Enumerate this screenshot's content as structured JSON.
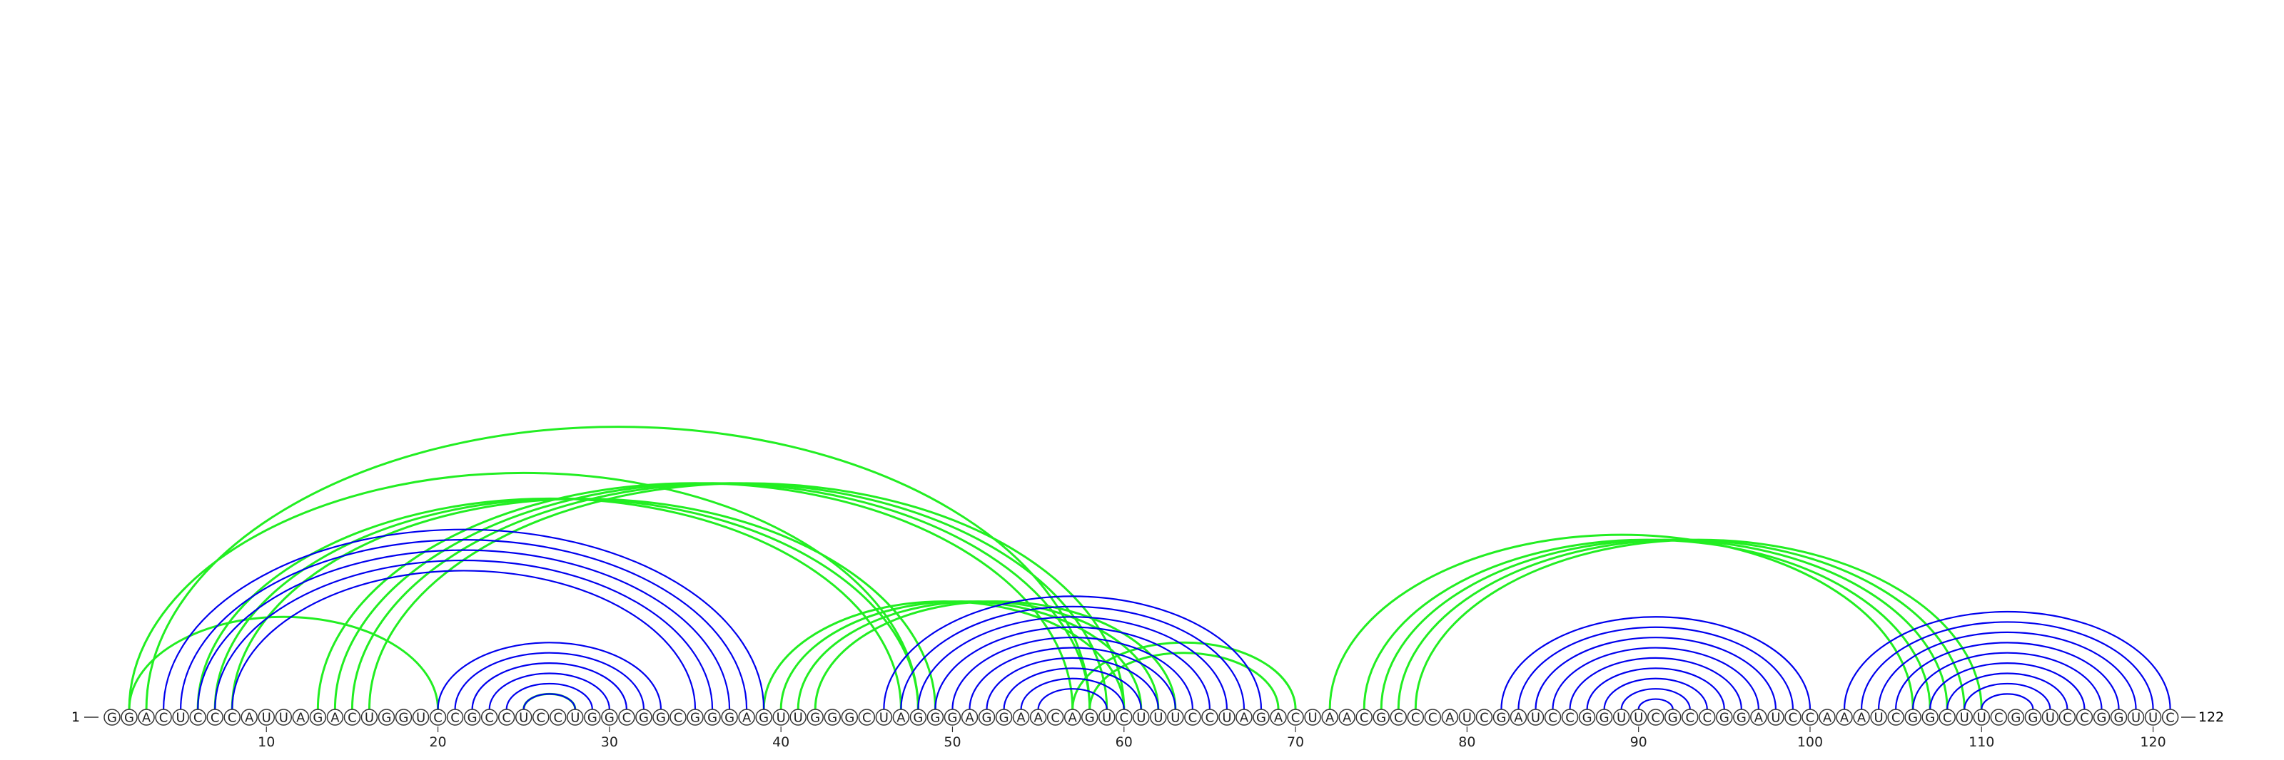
{
  "sequence": "GGACUCCCAUUAGACUGGUCCGCCUCCUGGCGGCGGGAGUUGGGCUAGGGAGGAACAGUCUUUCCUAGACUAACGCCCAUCGAUCCGGUUCGCCGGAUCCAAAUCGGCUUCGGUCCGGUUC",
  "start_label": "1",
  "end_label": "122",
  "tick_labels": [
    "10",
    "20",
    "30",
    "40",
    "50",
    "60",
    "70",
    "80",
    "90",
    "100",
    "110",
    "120"
  ],
  "colors": {
    "nucleotide_stroke": "#333333",
    "nucleotide_fill": "#ffffff",
    "text": "#222222",
    "secondary_arc": "#0000ee",
    "tertiary_arc": "#22ee22"
  },
  "arc_groups": [
    {
      "layer": "secondary",
      "color": "#0000ee",
      "pairs": [
        [
          4,
          39
        ],
        [
          5,
          38
        ],
        [
          6,
          37
        ],
        [
          7,
          36
        ],
        [
          8,
          35
        ]
      ]
    },
    {
      "layer": "secondary",
      "color": "#0000ee",
      "pairs": [
        [
          20,
          33
        ],
        [
          21,
          32
        ],
        [
          22,
          31
        ],
        [
          23,
          30
        ],
        [
          24,
          29
        ],
        [
          25,
          28
        ]
      ]
    },
    {
      "layer": "secondary",
      "color": "#0000ee",
      "pairs": [
        [
          46,
          68
        ],
        [
          47,
          67
        ],
        [
          48,
          66
        ],
        [
          49,
          65
        ],
        [
          50,
          64
        ],
        [
          51,
          63
        ],
        [
          52,
          62
        ],
        [
          53,
          61
        ],
        [
          54,
          60
        ],
        [
          55,
          59
        ]
      ]
    },
    {
      "layer": "secondary",
      "color": "#0000ee",
      "pairs": [
        [
          82,
          100
        ],
        [
          83,
          99
        ],
        [
          84,
          98
        ],
        [
          85,
          97
        ],
        [
          86,
          96
        ],
        [
          87,
          95
        ],
        [
          88,
          94
        ],
        [
          89,
          93
        ],
        [
          90,
          92
        ]
      ]
    },
    {
      "layer": "secondary",
      "color": "#0000ee",
      "pairs": [
        [
          102,
          121
        ],
        [
          103,
          120
        ],
        [
          104,
          119
        ],
        [
          105,
          118
        ],
        [
          106,
          117
        ],
        [
          107,
          116
        ],
        [
          108,
          115
        ],
        [
          109,
          114
        ],
        [
          110,
          113
        ]
      ]
    },
    {
      "layer": "tertiary",
      "color": "#22ee22",
      "pairs": [
        [
          2,
          20
        ],
        [
          2,
          48
        ],
        [
          3,
          58
        ],
        [
          13,
          57
        ],
        [
          14,
          58
        ],
        [
          15,
          59
        ],
        [
          16,
          60
        ],
        [
          25,
          28
        ],
        [
          39,
          60
        ],
        [
          40,
          61
        ],
        [
          41,
          62
        ],
        [
          42,
          63
        ],
        [
          57,
          70
        ],
        [
          58,
          69
        ],
        [
          72,
          106
        ],
        [
          74,
          107
        ],
        [
          75,
          108
        ],
        [
          76,
          109
        ],
        [
          77,
          110
        ],
        [
          6,
          47
        ],
        [
          7,
          48
        ],
        [
          8,
          49
        ]
      ]
    }
  ]
}
